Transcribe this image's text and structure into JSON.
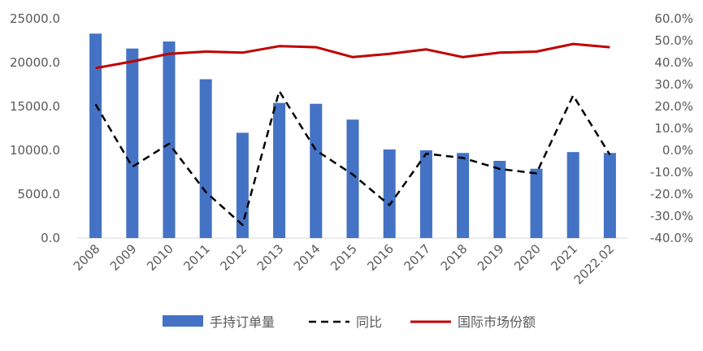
{
  "chart_data": {
    "type": "bar",
    "categories": [
      "2008",
      "2009",
      "2010",
      "2011",
      "2012",
      "2013",
      "2014",
      "2015",
      "2016",
      "2017",
      "2018",
      "2019",
      "2020",
      "2021",
      "2022.02"
    ],
    "series": [
      {
        "name": "手持订单量",
        "type": "bar",
        "axis": "left",
        "color": "#4472C4",
        "values": [
          23300,
          21600,
          22400,
          18100,
          12000,
          15400,
          15300,
          13500,
          10100,
          10000,
          9700,
          8800,
          7900,
          9800,
          9700
        ]
      },
      {
        "name": "同比",
        "type": "line",
        "style": "dashed",
        "axis": "right",
        "color": "#000000",
        "values": [
          21.0,
          -7.5,
          3.0,
          -19.0,
          -34.0,
          27.0,
          0.0,
          -11.0,
          -25.0,
          -1.5,
          -3.5,
          -8.5,
          -10.5,
          25.0,
          -2.0
        ]
      },
      {
        "name": "国际市场份额",
        "type": "line",
        "style": "solid",
        "axis": "right",
        "color": "#C00000",
        "values": [
          37.5,
          40.5,
          44.0,
          45.0,
          44.5,
          47.5,
          47.0,
          42.5,
          44.0,
          46.0,
          42.5,
          44.5,
          45.0,
          48.5,
          47.0
        ]
      }
    ],
    "y_left": {
      "min": 0,
      "max": 25000,
      "ticks": [
        "0.0",
        "5000.0",
        "10000.0",
        "15000.0",
        "20000.0",
        "25000.0"
      ]
    },
    "y_right": {
      "min": -40,
      "max": 60,
      "ticks": [
        "-40.0%",
        "-30.0%",
        "-20.0%",
        "-10.0%",
        "0.0%",
        "10.0%",
        "20.0%",
        "30.0%",
        "40.0%",
        "50.0%",
        "60.0%"
      ]
    },
    "grid": false,
    "legend": "bottom"
  }
}
